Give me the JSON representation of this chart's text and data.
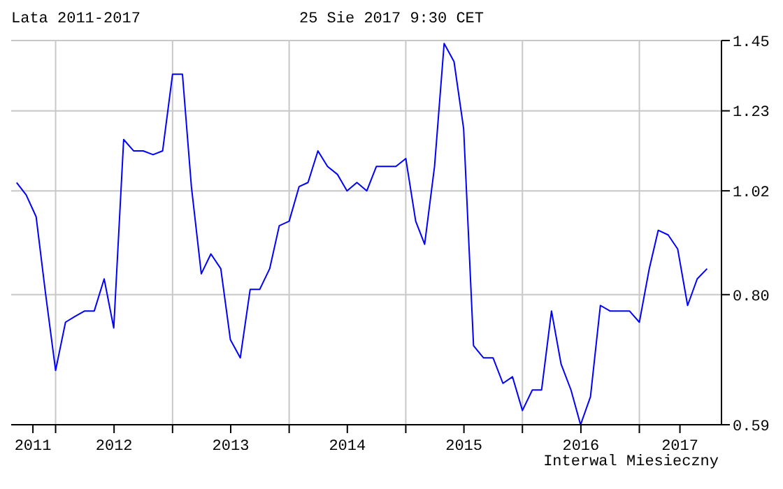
{
  "chart_data": {
    "type": "line",
    "title": "Lata 2011-2017",
    "subtitle": "25 Sie 2017 9:30 CET",
    "annotations": [
      "Interwal Miesieczny"
    ],
    "x": [
      "2011-09",
      "2011-10",
      "2011-11",
      "2011-12",
      "2012-01",
      "2012-02",
      "2012-03",
      "2012-04",
      "2012-05",
      "2012-06",
      "2012-07",
      "2012-08",
      "2012-09",
      "2012-10",
      "2012-11",
      "2012-12",
      "2013-01",
      "2013-02",
      "2013-03",
      "2013-04",
      "2013-05",
      "2013-06",
      "2013-07",
      "2013-08",
      "2013-09",
      "2013-10",
      "2013-11",
      "2013-12",
      "2014-01",
      "2014-02",
      "2014-03",
      "2014-04",
      "2014-05",
      "2014-06",
      "2014-07",
      "2014-08",
      "2014-09",
      "2014-10",
      "2014-11",
      "2014-12",
      "2015-01",
      "2015-02",
      "2015-03",
      "2015-04",
      "2015-05",
      "2015-06",
      "2015-07",
      "2015-08",
      "2015-09",
      "2015-10",
      "2015-11",
      "2015-12",
      "2016-01",
      "2016-02",
      "2016-03",
      "2016-04",
      "2016-05",
      "2016-06",
      "2016-07",
      "2016-08",
      "2016-09",
      "2016-10",
      "2016-11",
      "2016-12",
      "2017-01",
      "2017-02",
      "2017-03",
      "2017-04",
      "2017-05",
      "2017-06",
      "2017-07",
      "2017-08"
    ],
    "series": [
      {
        "color": "#0000ff",
        "values": [
          1.04,
          1.01,
          0.96,
          0.8,
          0.67,
          0.75,
          0.76,
          0.77,
          0.77,
          0.83,
          0.74,
          1.15,
          1.12,
          1.12,
          1.11,
          1.12,
          1.34,
          1.34,
          1.03,
          0.84,
          0.88,
          0.85,
          0.72,
          0.69,
          0.81,
          0.81,
          0.85,
          0.94,
          0.95,
          1.03,
          1.04,
          1.12,
          1.08,
          1.06,
          1.02,
          1.04,
          1.02,
          1.08,
          1.08,
          1.08,
          1.1,
          0.95,
          0.9,
          1.08,
          1.44,
          1.38,
          1.18,
          0.71,
          0.69,
          0.69,
          0.65,
          0.66,
          0.61,
          0.64,
          0.64,
          0.77,
          0.68,
          0.64,
          0.59,
          0.63,
          0.78,
          0.77,
          0.77,
          0.77,
          0.75,
          0.85,
          0.93,
          0.92,
          0.89,
          0.78,
          0.83,
          0.85
        ]
      }
    ],
    "log": "y",
    "ylim": [
      0.59,
      1.45
    ],
    "yticks": [
      {
        "value": 0.59,
        "label": "0.59"
      },
      {
        "value": 0.8,
        "label": "0.80"
      },
      {
        "value": 1.02,
        "label": "1.02"
      },
      {
        "value": 1.23,
        "label": "1.23"
      },
      {
        "value": 1.45,
        "label": "1.45"
      }
    ],
    "xlim": [
      "2011-08-15",
      "2017-09-15"
    ],
    "xticks": [
      {
        "value": "2011-10-22",
        "label": "2011"
      },
      {
        "value": "2012-01",
        "label": null
      },
      {
        "value": "2012-07-02",
        "label": "2012"
      },
      {
        "value": "2013-01",
        "label": null
      },
      {
        "value": "2013-07-02",
        "label": "2013"
      },
      {
        "value": "2014-01",
        "label": null
      },
      {
        "value": "2014-07-02",
        "label": "2014"
      },
      {
        "value": "2015-01",
        "label": null
      },
      {
        "value": "2015-07-02",
        "label": "2015"
      },
      {
        "value": "2016-01",
        "label": null
      },
      {
        "value": "2016-07-02",
        "label": "2016"
      },
      {
        "value": "2017-01",
        "label": null
      },
      {
        "value": "2017-05-08",
        "label": "2017"
      }
    ],
    "grid": true,
    "legend": false,
    "marker": "none",
    "line_style": "solid"
  }
}
